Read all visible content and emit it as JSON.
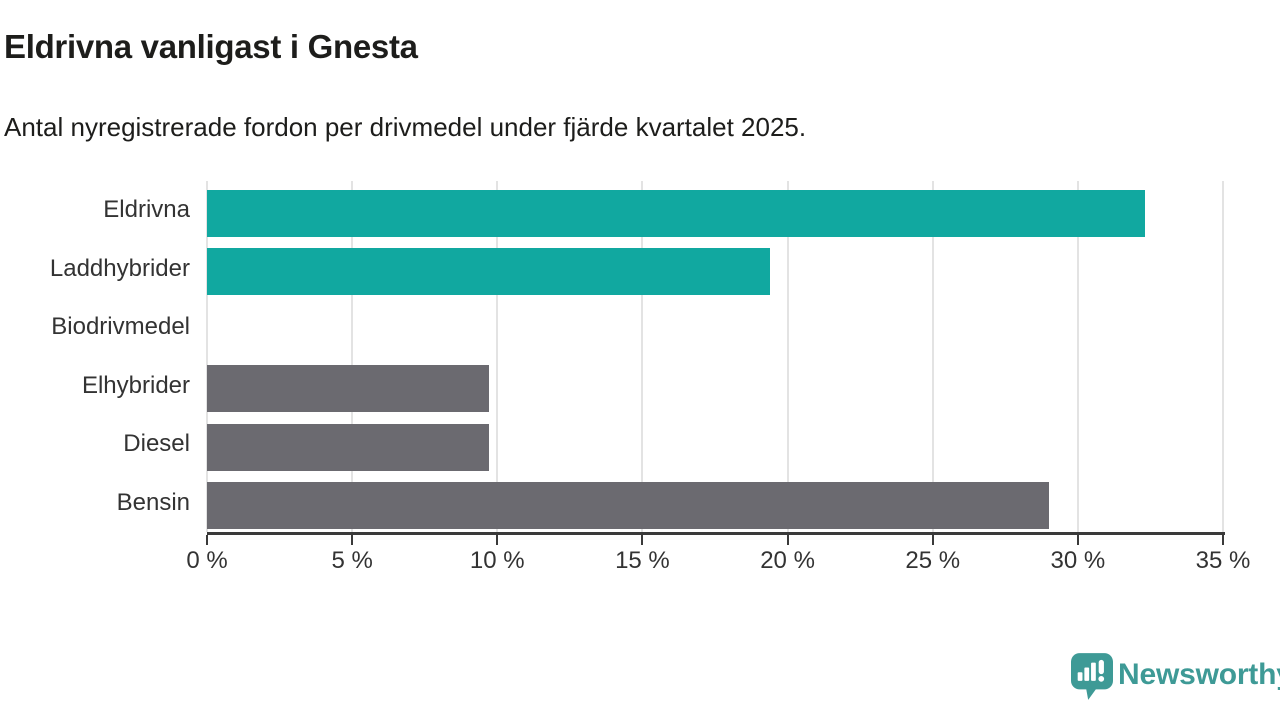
{
  "title": "Eldrivna vanligast i Gnesta",
  "subtitle": "Antal nyregistrerade fordon per drivmedel under fjärde kvartalet 2025.",
  "chart_data": {
    "type": "bar",
    "orientation": "horizontal",
    "title": "Eldrivna vanligast i Gnesta",
    "subtitle": "Antal nyregistrerade fordon per drivmedel under fjärde kvartalet 2025.",
    "categories": [
      "Eldrivna",
      "Laddhybrider",
      "Biodrivmedel",
      "Elhybrider",
      "Diesel",
      "Bensin"
    ],
    "values": [
      32.3,
      19.4,
      0,
      9.7,
      9.7,
      29.0
    ],
    "unit": "%",
    "xlim": [
      0,
      35
    ],
    "x_tick_values": [
      0,
      5,
      10,
      15,
      20,
      25,
      30,
      35
    ],
    "x_tick_labels": [
      "0 %",
      "5 %",
      "10 %",
      "15 %",
      "20 %",
      "25 %",
      "30 %",
      "35 %"
    ],
    "grid": true,
    "legend": "none",
    "bar_colors": [
      "#11a8a0",
      "#11a8a0",
      "#6b6a70",
      "#6b6a70",
      "#6b6a70",
      "#6b6a70"
    ]
  },
  "colors": {
    "highlight_bar": "#11a8a0",
    "default_bar": "#6b6a70",
    "gridline": "#e3e3e3",
    "axis": "#3a3a3a",
    "text": "#1d1d1b",
    "label_text": "#333333",
    "brand": "#3e9a96"
  },
  "footer": {
    "brand": "Newsworthy",
    "logo_icon": "bar-chart-speech-bubble-icon"
  }
}
